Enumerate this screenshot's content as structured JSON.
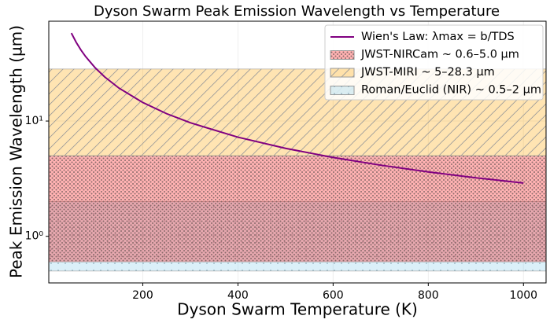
{
  "chart_data": {
    "type": "line",
    "title": "Dyson Swarm Peak Emission Wavelength vs Temperature",
    "x_label": "Dyson Swarm Temperature (K)",
    "y_label": "Peak Emission Wavelength (µm)",
    "x": [
      50,
      60,
      70,
      80,
      100,
      120,
      150,
      200,
      250,
      300,
      400,
      500,
      600,
      700,
      800,
      900,
      1000
    ],
    "series": [
      {
        "name": "Wien's Law: λmax = b/TDS",
        "color": "#800080",
        "values": [
          57.96,
          48.3,
          41.4,
          36.23,
          28.98,
          24.15,
          19.32,
          14.49,
          11.59,
          9.66,
          7.245,
          5.796,
          4.83,
          4.14,
          3.623,
          3.22,
          2.898
        ]
      }
    ],
    "bands": [
      {
        "name": " JWST-NIRCam ~ 0.6–5.0 µm",
        "range": [
          0.6,
          5.0
        ],
        "color": "#ff0000",
        "hatch": "dots"
      },
      {
        "name": "JWST-MIRI ~ 5–28.3 µm",
        "range": [
          5,
          28.3
        ],
        "color": "#ffa500",
        "hatch": "diagonal"
      },
      {
        "name": "Roman/Euclid (NIR) ~ 0.5–2 µm",
        "range": [
          0.5,
          2
        ],
        "color": "#87ceeb",
        "hatch": "sparse-dots"
      }
    ],
    "xlim": [
      2.5,
      1047.5
    ],
    "xticks": [
      200,
      400,
      600,
      800,
      1000
    ],
    "ylim": [
      0.394,
      73.5
    ],
    "y_scale": "log",
    "yticks": [
      {
        "value": 1,
        "label": "10⁰"
      },
      {
        "value": 10,
        "label": "10¹"
      }
    ],
    "grid": true,
    "legend": "upper right"
  }
}
